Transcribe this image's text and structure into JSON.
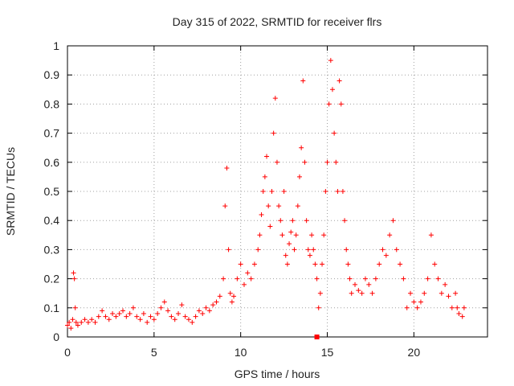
{
  "chart_data": {
    "type": "scatter",
    "title": "Day 315 of 2022, SRMTID for receiver flrs",
    "xlabel": "GPS time / hours",
    "ylabel": "SRMTID / TECUs",
    "xlim": [
      0,
      24.25
    ],
    "ylim": [
      0,
      1
    ],
    "x_ticks": [
      0,
      5,
      10,
      15,
      20
    ],
    "y_ticks": [
      0,
      0.1,
      0.2,
      0.3,
      0.4,
      0.5,
      0.6,
      0.7,
      0.8,
      0.9,
      1
    ],
    "x_tick_labels": [
      "0",
      "5",
      "10",
      "15",
      "20"
    ],
    "y_tick_labels": [
      "0",
      "0.1",
      "0.2",
      "0.3",
      "0.4",
      "0.5",
      "0.6",
      "0.7",
      "0.8",
      "0.9",
      "1"
    ],
    "grid": true,
    "marker": "+",
    "series_color": "#ff0000",
    "extra_marker": {
      "x": 14.4,
      "y": 0,
      "shape": "square"
    },
    "series": [
      {
        "name": "SRMTID",
        "x": [
          0.0,
          0.1,
          0.2,
          0.3,
          0.35,
          0.4,
          0.45,
          0.5,
          0.6,
          0.8,
          1.0,
          1.2,
          1.4,
          1.6,
          1.8,
          2.0,
          2.2,
          2.4,
          2.6,
          2.8,
          3.0,
          3.2,
          3.4,
          3.6,
          3.8,
          4.0,
          4.2,
          4.4,
          4.6,
          4.8,
          5.0,
          5.2,
          5.4,
          5.6,
          5.8,
          6.0,
          6.2,
          6.4,
          6.6,
          6.8,
          7.0,
          7.2,
          7.4,
          7.6,
          7.8,
          8.0,
          8.2,
          8.4,
          8.6,
          8.8,
          9.0,
          9.1,
          9.2,
          9.3,
          9.4,
          9.5,
          9.6,
          9.8,
          10.0,
          10.2,
          10.4,
          10.6,
          10.8,
          11.0,
          11.1,
          11.2,
          11.3,
          11.4,
          11.5,
          11.6,
          11.7,
          11.8,
          11.9,
          12.0,
          12.1,
          12.2,
          12.3,
          12.4,
          12.5,
          12.6,
          12.7,
          12.8,
          12.9,
          13.0,
          13.1,
          13.2,
          13.3,
          13.4,
          13.5,
          13.6,
          13.7,
          13.8,
          13.9,
          14.0,
          14.1,
          14.2,
          14.3,
          14.4,
          14.5,
          14.6,
          14.7,
          14.8,
          14.9,
          15.0,
          15.1,
          15.2,
          15.3,
          15.4,
          15.5,
          15.6,
          15.7,
          15.8,
          15.9,
          16.0,
          16.1,
          16.2,
          16.3,
          16.4,
          16.6,
          16.8,
          17.0,
          17.2,
          17.4,
          17.6,
          17.8,
          18.0,
          18.2,
          18.4,
          18.6,
          18.8,
          19.0,
          19.2,
          19.4,
          19.6,
          19.8,
          20.0,
          20.2,
          20.4,
          20.6,
          20.8,
          21.0,
          21.2,
          21.4,
          21.6,
          21.8,
          22.0,
          22.2,
          22.4,
          22.5,
          22.6,
          22.8,
          22.9
        ],
        "y": [
          0.04,
          0.05,
          0.03,
          0.06,
          0.22,
          0.2,
          0.1,
          0.05,
          0.04,
          0.05,
          0.06,
          0.05,
          0.06,
          0.05,
          0.07,
          0.09,
          0.07,
          0.06,
          0.08,
          0.07,
          0.08,
          0.09,
          0.07,
          0.08,
          0.1,
          0.07,
          0.06,
          0.08,
          0.05,
          0.07,
          0.06,
          0.08,
          0.1,
          0.12,
          0.09,
          0.07,
          0.06,
          0.08,
          0.11,
          0.07,
          0.06,
          0.05,
          0.07,
          0.09,
          0.08,
          0.1,
          0.09,
          0.11,
          0.12,
          0.14,
          0.2,
          0.45,
          0.58,
          0.3,
          0.15,
          0.12,
          0.14,
          0.2,
          0.25,
          0.18,
          0.22,
          0.2,
          0.25,
          0.3,
          0.35,
          0.42,
          0.5,
          0.55,
          0.62,
          0.45,
          0.38,
          0.5,
          0.7,
          0.82,
          0.6,
          0.45,
          0.4,
          0.35,
          0.5,
          0.28,
          0.25,
          0.32,
          0.36,
          0.4,
          0.3,
          0.35,
          0.45,
          0.55,
          0.65,
          0.88,
          0.6,
          0.4,
          0.3,
          0.28,
          0.35,
          0.3,
          0.25,
          0.2,
          0.1,
          0.15,
          0.25,
          0.35,
          0.5,
          0.6,
          0.8,
          0.95,
          0.85,
          0.7,
          0.6,
          0.5,
          0.88,
          0.8,
          0.5,
          0.4,
          0.3,
          0.25,
          0.2,
          0.15,
          0.18,
          0.16,
          0.15,
          0.2,
          0.18,
          0.15,
          0.2,
          0.25,
          0.3,
          0.28,
          0.35,
          0.4,
          0.3,
          0.25,
          0.2,
          0.1,
          0.15,
          0.12,
          0.1,
          0.12,
          0.15,
          0.2,
          0.35,
          0.25,
          0.2,
          0.15,
          0.18,
          0.14,
          0.1,
          0.15,
          0.1,
          0.08,
          0.07,
          0.1
        ]
      }
    ]
  }
}
